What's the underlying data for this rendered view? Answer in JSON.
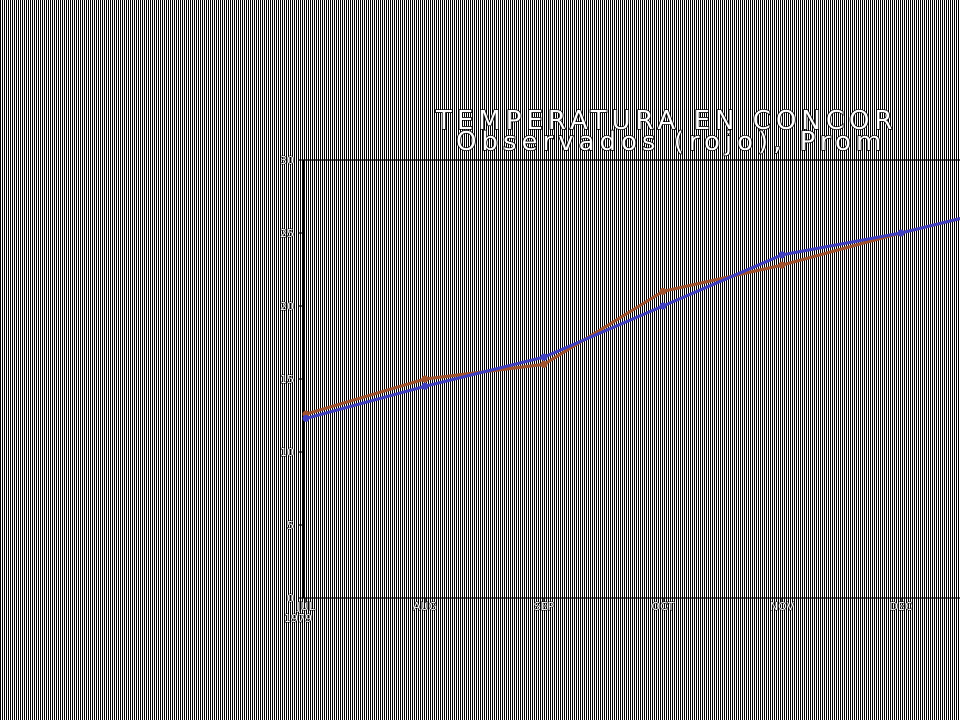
{
  "chart_data": {
    "type": "line",
    "title": "TEMPERATURA EN CONCOR",
    "subtitle": "Observados (rojo), Prom",
    "x_tick_labels": [
      "JUL",
      "AUG",
      "SEP",
      "OCT",
      "NOV",
      "DEC"
    ],
    "x_year_label": "1979",
    "y_ticks": [
      0,
      5,
      10,
      15,
      20,
      25,
      30
    ],
    "ylim": [
      0,
      30
    ],
    "x": [
      0,
      1,
      2,
      3,
      4,
      5,
      5.5
    ],
    "grid": false,
    "series": [
      {
        "color": "#a0522d",
        "values": [
          12.6,
          15.0,
          16.0,
          21.0,
          22.8,
          25.0,
          26.0
        ]
      },
      {
        "color": "#4040c0",
        "values": [
          12.3,
          14.5,
          16.5,
          20.0,
          23.5,
          25.0,
          26.0
        ]
      }
    ]
  }
}
